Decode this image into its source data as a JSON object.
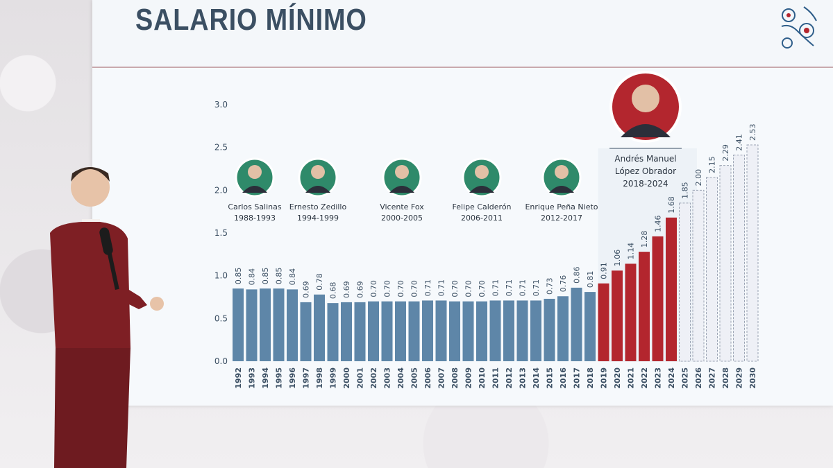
{
  "header": {
    "title": "SALARIO MÍNIMO"
  },
  "colors": {
    "past": "#5e86a8",
    "amlo": "#b3262e",
    "projection": "#eef0f6",
    "axis_text": "#3b4f63"
  },
  "presidents": [
    {
      "name": "Carlos Salinas",
      "term": "1988-1993"
    },
    {
      "name": "Ernesto Zedillo",
      "term": "1994-1999"
    },
    {
      "name": "Vicente Fox",
      "term": "2000-2005"
    },
    {
      "name": "Felipe Calderón",
      "term": "2006-2011"
    },
    {
      "name": "Enrique Peña Nieto",
      "term": "2012-2017"
    }
  ],
  "highlight": {
    "name_line1": "Andrés Manuel",
    "name_line2": "López Obrador",
    "term": "2018-2024"
  },
  "chart_data": {
    "type": "bar",
    "title": "SALARIO MÍNIMO",
    "xlabel": "",
    "ylabel": "",
    "ylim": [
      0,
      3.0
    ],
    "yticks": [
      "0.0",
      "0.5",
      "1.0",
      "1.5",
      "2.0",
      "2.5",
      "3.0"
    ],
    "categories": [
      "1992",
      "1993",
      "1994",
      "1995",
      "1996",
      "1997",
      "1998",
      "1999",
      "2000",
      "2001",
      "2002",
      "2003",
      "2004",
      "2005",
      "2006",
      "2007",
      "2008",
      "2009",
      "2010",
      "2011",
      "2012",
      "2013",
      "2014",
      "2015",
      "2016",
      "2017",
      "2018",
      "2019",
      "2020",
      "2021",
      "2022",
      "2023",
      "2024",
      "2025",
      "2026",
      "2027",
      "2028",
      "2029",
      "2030"
    ],
    "values": [
      0.85,
      0.84,
      0.85,
      0.85,
      0.84,
      0.69,
      0.78,
      0.68,
      0.69,
      0.69,
      0.7,
      0.7,
      0.7,
      0.7,
      0.71,
      0.71,
      0.7,
      0.7,
      0.7,
      0.71,
      0.71,
      0.71,
      0.71,
      0.73,
      0.76,
      0.86,
      0.81,
      0.91,
      1.06,
      1.14,
      1.28,
      1.46,
      1.68,
      1.85,
      2.0,
      2.15,
      2.29,
      2.41,
      2.53
    ],
    "labels": [
      "0.85",
      "0.84",
      "0.85",
      "0.85",
      "0.84",
      "0.69",
      "0.78",
      "0.68",
      "0.69",
      "0.69",
      "0.70",
      "0.70",
      "0.70",
      "0.70",
      "0.71",
      "0.71",
      "0.70",
      "0.70",
      "0.70",
      "0.71",
      "0.71",
      "0.71",
      "0.71",
      "0.73",
      "0.76",
      "0.86",
      "0.81",
      "0.91",
      "1.06",
      "1.14",
      "1.28",
      "1.46",
      "1.68",
      "1.85",
      "2.00",
      "2.15",
      "2.29",
      "2.41",
      "2.53"
    ],
    "grid": false,
    "legend": "none"
  }
}
